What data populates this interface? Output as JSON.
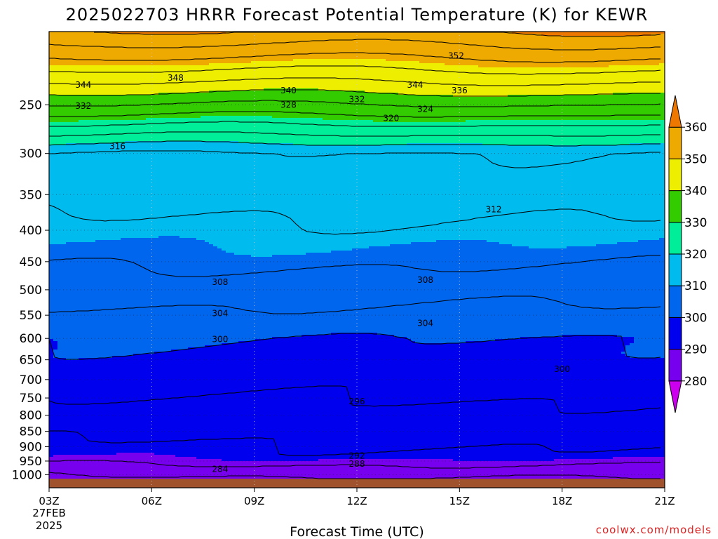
{
  "chart_data": {
    "type": "heatmap",
    "title": "2025022703 HRRR Forecast Potential Temperature (K) for KEWR",
    "xlabel": "Forecast Time (UTC)",
    "ylabel": "",
    "x_ticks": [
      "03Z",
      "06Z",
      "09Z",
      "12Z",
      "15Z",
      "18Z",
      "21Z"
    ],
    "x_start_date": [
      "27FEB",
      "2025"
    ],
    "xlim_hours": [
      3,
      21
    ],
    "y_ticks": [
      250,
      300,
      350,
      400,
      450,
      500,
      550,
      600,
      650,
      700,
      750,
      800,
      850,
      900,
      950,
      1000
    ],
    "y_scale": "log-pressure",
    "ylim": [
      1050,
      190
    ],
    "grid": true,
    "colorbar": {
      "labels": [
        280,
        290,
        300,
        310,
        320,
        330,
        340,
        350,
        360
      ],
      "colors": [
        "#cc00ee",
        "#7700ee",
        "#0000ee",
        "#0066ee",
        "#00bbee",
        "#00ee99",
        "#33cc00",
        "#eeee00",
        "#eeaa00",
        "#ee7700"
      ],
      "placement": "right"
    },
    "contour_interval_K": 4,
    "contour_labels": [
      {
        "value": 352,
        "hour": 14.9,
        "p": 208
      },
      {
        "value": 348,
        "hour": 6.7,
        "p": 226
      },
      {
        "value": 344,
        "hour": 4.0,
        "p": 232
      },
      {
        "value": 344,
        "hour": 13.7,
        "p": 232
      },
      {
        "value": 340,
        "hour": 10.0,
        "p": 237
      },
      {
        "value": 336,
        "hour": 15.0,
        "p": 237
      },
      {
        "value": 332,
        "hour": 4.0,
        "p": 251
      },
      {
        "value": 332,
        "hour": 12.0,
        "p": 245
      },
      {
        "value": 328,
        "hour": 10.0,
        "p": 250
      },
      {
        "value": 324,
        "hour": 14.0,
        "p": 254
      },
      {
        "value": 320,
        "hour": 13.0,
        "p": 263
      },
      {
        "value": 316,
        "hour": 5.0,
        "p": 292
      },
      {
        "value": 312,
        "hour": 16.0,
        "p": 370
      },
      {
        "value": 308,
        "hour": 8.0,
        "p": 486
      },
      {
        "value": 308,
        "hour": 14.0,
        "p": 482
      },
      {
        "value": 304,
        "hour": 8.0,
        "p": 546
      },
      {
        "value": 304,
        "hour": 14.0,
        "p": 567
      },
      {
        "value": 300,
        "hour": 8.0,
        "p": 602
      },
      {
        "value": 300,
        "hour": 18.0,
        "p": 673
      },
      {
        "value": 296,
        "hour": 12.0,
        "p": 760
      },
      {
        "value": 292,
        "hour": 12.0,
        "p": 931
      },
      {
        "value": 288,
        "hour": 12.0,
        "p": 960
      },
      {
        "value": 284,
        "hour": 8.0,
        "p": 979
      }
    ],
    "surface_pressure_hPa": 1015,
    "ground_color": "#a0522d"
  },
  "credit": "coolwx.com/models"
}
